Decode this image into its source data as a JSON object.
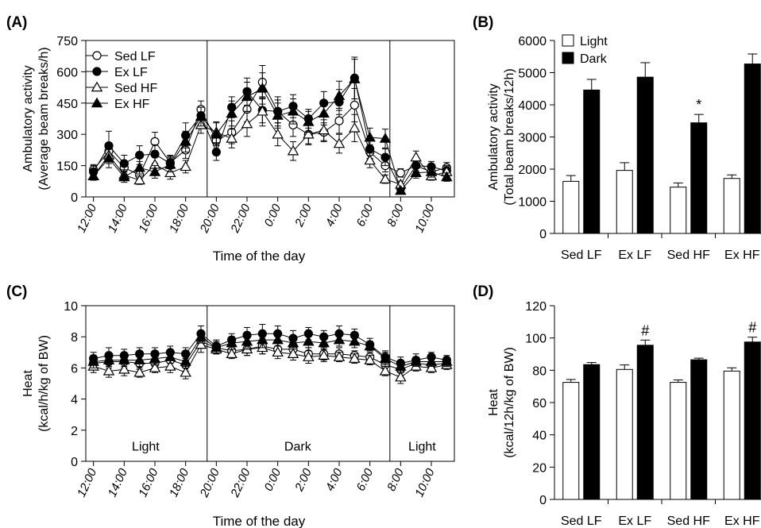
{
  "chart_data": [
    {
      "panel": "(A)",
      "type": "line",
      "ylabel": [
        "Ambulatory activity",
        "(Average beam breaks/h)"
      ],
      "xlabel": "Time of the day",
      "ylim": [
        0,
        750
      ],
      "yticks": [
        0,
        150,
        300,
        450,
        600,
        750
      ],
      "x_tick_labels": [
        "12:00",
        "14:00",
        "16:00",
        "18:00",
        "20:00",
        "22:00",
        "0:00",
        "2:00",
        "4:00",
        "6:00",
        "8:00",
        "10:00"
      ],
      "x_tick_hours": [
        12,
        14,
        16,
        18,
        20,
        22,
        24,
        26,
        28,
        30,
        32,
        34
      ],
      "x_range_hours": [
        11.5,
        35.5
      ],
      "phase_boundaries_hours": [
        19.4,
        31.3
      ],
      "legend": "top-left",
      "x_hours": [
        12,
        13,
        14,
        15,
        16,
        17,
        18,
        19,
        20,
        21,
        22,
        23,
        24,
        25,
        26,
        27,
        28,
        29,
        30,
        31,
        32,
        33,
        34,
        35
      ],
      "series": [
        {
          "name": "Sed LF",
          "marker": "circle-open",
          "values": [
            130,
            220,
            140,
            105,
            265,
            165,
            225,
            420,
            270,
            310,
            420,
            550,
            410,
            345,
            300,
            310,
            365,
            440,
            215,
            150,
            115,
            150,
            120,
            140
          ],
          "errors": [
            25,
            40,
            30,
            20,
            45,
            30,
            40,
            40,
            45,
            55,
            60,
            80,
            70,
            55,
            50,
            45,
            60,
            80,
            35,
            30,
            20,
            25,
            20,
            25
          ]
        },
        {
          "name": "Ex LF",
          "marker": "circle-filled",
          "values": [
            120,
            245,
            160,
            200,
            205,
            160,
            295,
            390,
            215,
            430,
            505,
            415,
            410,
            435,
            375,
            450,
            455,
            570,
            230,
            190,
            40,
            150,
            145,
            125
          ],
          "errors": [
            30,
            70,
            40,
            45,
            45,
            40,
            60,
            40,
            40,
            50,
            65,
            60,
            55,
            55,
            45,
            55,
            60,
            100,
            45,
            40,
            15,
            30,
            25,
            25
          ]
        },
        {
          "name": "Sed HF",
          "marker": "triangle-open",
          "values": [
            100,
            200,
            105,
            80,
            155,
            115,
            145,
            345,
            310,
            280,
            350,
            410,
            300,
            220,
            300,
            320,
            255,
            330,
            175,
            85,
            60,
            190,
            100,
            120
          ],
          "errors": [
            20,
            40,
            25,
            20,
            35,
            30,
            30,
            40,
            50,
            45,
            60,
            70,
            55,
            45,
            45,
            50,
            45,
            65,
            35,
            20,
            15,
            30,
            20,
            25
          ]
        },
        {
          "name": "Ex HF",
          "marker": "triangle-filled",
          "values": [
            100,
            185,
            95,
            140,
            120,
            155,
            265,
            385,
            300,
            400,
            480,
            520,
            390,
            410,
            360,
            400,
            485,
            565,
            285,
            280,
            30,
            115,
            120,
            95
          ],
          "errors": [
            20,
            45,
            25,
            30,
            30,
            35,
            50,
            45,
            55,
            60,
            70,
            75,
            60,
            60,
            50,
            55,
            70,
            95,
            45,
            45,
            10,
            25,
            25,
            20
          ]
        }
      ]
    },
    {
      "panel": "(B)",
      "type": "bar",
      "ylabel": [
        "Ambulatory activity",
        "(Total beam breaks/12h)"
      ],
      "ylim": [
        0,
        6000
      ],
      "yticks": [
        0,
        1000,
        2000,
        3000,
        4000,
        5000,
        6000
      ],
      "categories": [
        "Sed LF",
        "Ex LF",
        "Sed HF",
        "Ex HF"
      ],
      "legend": "top-left",
      "series": [
        {
          "name": "Light",
          "color": "#ffffff",
          "values": [
            1620,
            1960,
            1440,
            1710
          ],
          "errors": [
            180,
            240,
            130,
            110
          ]
        },
        {
          "name": "Dark",
          "color": "#000000",
          "values": [
            4460,
            4860,
            3440,
            5270
          ],
          "errors": [
            330,
            450,
            260,
            310
          ]
        }
      ],
      "annotations": [
        {
          "category": "Sed HF",
          "series": "Dark",
          "text": "*"
        }
      ]
    },
    {
      "panel": "(C)",
      "type": "line",
      "ylabel": [
        "Heat",
        "(kcal/h/kg of BW)"
      ],
      "xlabel": "Time of the day",
      "ylim": [
        0,
        10
      ],
      "yticks": [
        0,
        2,
        4,
        6,
        8,
        10
      ],
      "x_tick_labels": [
        "12:00",
        "14:00",
        "16:00",
        "18:00",
        "20:00",
        "22:00",
        "0:00",
        "2:00",
        "4:00",
        "6:00",
        "8:00",
        "10:00"
      ],
      "x_tick_hours": [
        12,
        14,
        16,
        18,
        20,
        22,
        24,
        26,
        28,
        30,
        32,
        34
      ],
      "x_range_hours": [
        11.5,
        35.5
      ],
      "phase_boundaries_hours": [
        19.4,
        31.3
      ],
      "phase_labels": [
        {
          "text": "Light",
          "hour": 15.4,
          "y": 1.0
        },
        {
          "text": "Dark",
          "hour": 25.3,
          "y": 1.0
        },
        {
          "text": "Light",
          "hour": 33.4,
          "y": 1.0
        }
      ],
      "x_hours": [
        12,
        13,
        14,
        15,
        16,
        17,
        18,
        19,
        20,
        21,
        22,
        23,
        24,
        25,
        26,
        27,
        28,
        29,
        30,
        31,
        32,
        33,
        34,
        35
      ],
      "series": [
        {
          "name": "Sed LF",
          "marker": "circle-open",
          "values": [
            6.3,
            6.4,
            6.4,
            6.3,
            6.3,
            6.5,
            6.2,
            7.7,
            7.3,
            7.1,
            7.2,
            7.4,
            7.2,
            7.2,
            6.9,
            6.9,
            6.9,
            6.8,
            6.7,
            6.2,
            5.9,
            6.3,
            6.2,
            6.3
          ],
          "errors": [
            0.4,
            0.4,
            0.4,
            0.4,
            0.3,
            0.4,
            0.4,
            0.4,
            0.3,
            0.3,
            0.4,
            0.5,
            0.4,
            0.4,
            0.4,
            0.4,
            0.4,
            0.3,
            0.3,
            0.4,
            0.4,
            0.3,
            0.3,
            0.3
          ]
        },
        {
          "name": "Ex LF",
          "marker": "circle-filled",
          "values": [
            6.6,
            6.8,
            6.8,
            6.9,
            6.9,
            7.0,
            6.9,
            8.2,
            7.4,
            7.8,
            8.1,
            8.2,
            8.2,
            7.9,
            8.2,
            8.0,
            8.2,
            8.1,
            7.5,
            6.7,
            6.3,
            6.5,
            6.7,
            6.5
          ],
          "errors": [
            0.4,
            0.5,
            0.4,
            0.4,
            0.4,
            0.4,
            0.4,
            0.5,
            0.4,
            0.4,
            0.5,
            0.6,
            0.5,
            0.5,
            0.4,
            0.4,
            0.5,
            0.4,
            0.4,
            0.4,
            0.4,
            0.4,
            0.3,
            0.3
          ]
        },
        {
          "name": "Sed HF",
          "marker": "triangle-open",
          "values": [
            6.1,
            5.8,
            5.9,
            5.7,
            6.0,
            6.1,
            5.7,
            7.5,
            7.2,
            6.9,
            7.2,
            7.3,
            7.0,
            6.9,
            6.7,
            6.8,
            6.7,
            6.6,
            6.5,
            5.8,
            5.4,
            6.1,
            6.0,
            6.2
          ],
          "errors": [
            0.4,
            0.4,
            0.4,
            0.3,
            0.3,
            0.4,
            0.4,
            0.5,
            0.3,
            0.3,
            0.4,
            0.4,
            0.4,
            0.4,
            0.4,
            0.4,
            0.3,
            0.3,
            0.3,
            0.3,
            0.4,
            0.3,
            0.3,
            0.3
          ]
        },
        {
          "name": "Ex HF",
          "marker": "triangle-filled",
          "values": [
            6.4,
            6.5,
            6.5,
            6.5,
            6.6,
            6.7,
            6.4,
            8.0,
            7.3,
            7.6,
            7.7,
            7.8,
            7.8,
            7.6,
            7.7,
            7.6,
            7.8,
            7.7,
            7.4,
            6.6,
            6.1,
            6.4,
            6.4,
            6.4
          ],
          "errors": [
            0.4,
            0.4,
            0.4,
            0.4,
            0.4,
            0.4,
            0.4,
            0.4,
            0.4,
            0.4,
            0.5,
            0.5,
            0.4,
            0.4,
            0.4,
            0.4,
            0.4,
            0.4,
            0.3,
            0.4,
            0.4,
            0.3,
            0.3,
            0.3
          ]
        }
      ]
    },
    {
      "panel": "(D)",
      "type": "bar",
      "ylabel": [
        "Heat",
        "(kcal/12h/kg of BW)"
      ],
      "ylim": [
        0,
        120
      ],
      "yticks": [
        0,
        20,
        40,
        60,
        80,
        100,
        120
      ],
      "categories": [
        "Sed LF",
        "Ex LF",
        "Sed HF",
        "Ex HF"
      ],
      "series": [
        {
          "name": "Light",
          "color": "#ffffff",
          "values": [
            72.5,
            80.5,
            72.5,
            79.5
          ],
          "errors": [
            1.8,
            2.8,
            1.5,
            2.0
          ]
        },
        {
          "name": "Dark",
          "color": "#000000",
          "values": [
            83.5,
            95.5,
            86.5,
            97.5
          ],
          "errors": [
            1.3,
            3.2,
            1.0,
            3.0
          ]
        }
      ],
      "annotations": [
        {
          "category": "Ex LF",
          "series": "Dark",
          "text": "#"
        },
        {
          "category": "Ex HF",
          "series": "Dark",
          "text": "#"
        }
      ]
    }
  ]
}
